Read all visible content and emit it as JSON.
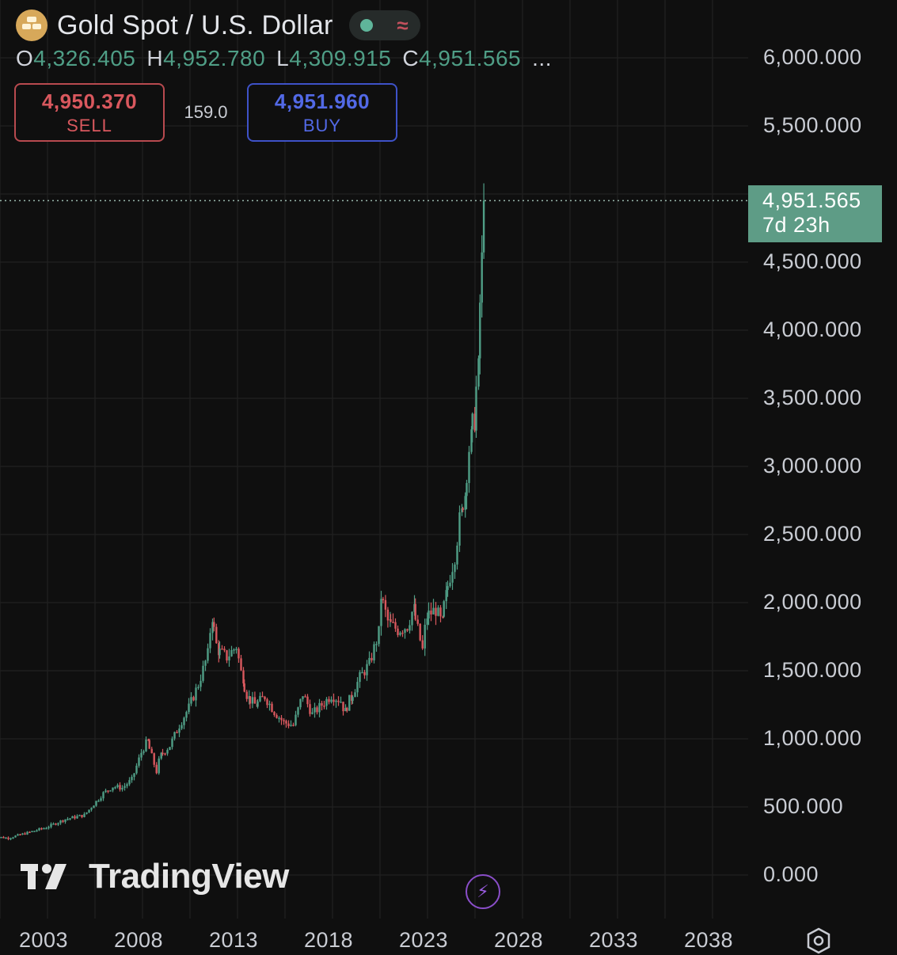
{
  "header": {
    "symbol_title": "Gold Spot / U.S. Dollar",
    "logo_icon": "gold-bars-icon",
    "status_icons": [
      "market-open-dot-icon",
      "data-delay-wave-icon"
    ],
    "status_wave_glyph": "≈",
    "ohlc": [
      {
        "key": "O",
        "value": "4,326.405"
      },
      {
        "key": "H",
        "value": "4,952.780"
      },
      {
        "key": "L",
        "value": "4,309.915"
      },
      {
        "key": "C",
        "value": "4,951.565"
      }
    ],
    "ohlc_more": "..."
  },
  "trade": {
    "sell_price": "4,950.370",
    "sell_label": "SELL",
    "spread": "159.0",
    "buy_price": "4,951.960",
    "buy_label": "BUY"
  },
  "price_tag": {
    "value": "4,951.565",
    "countdown": "7d 23h"
  },
  "watermark": {
    "text": "TradingView"
  },
  "colors": {
    "background": "#0f0f0f",
    "up": "#4f9e86",
    "down": "#d9585e",
    "grid": "#1f1f1f",
    "price_tag": "#5e9c86",
    "buy": "#5269e6"
  },
  "chart_data": {
    "type": "candlestick",
    "symbol": "Gold Spot / U.S. Dollar",
    "y_ticks": [
      "0.000",
      "500.000",
      "1,000.000",
      "1,500.000",
      "2,000.000",
      "2,500.000",
      "3,000.000",
      "3,500.000",
      "4,000.000",
      "4,500.000",
      "5,500.000",
      "6,000.000"
    ],
    "x_ticks": [
      "2003",
      "2008",
      "2013",
      "2018",
      "2023",
      "2028",
      "2033",
      "2038"
    ],
    "ylim": [
      0,
      6000
    ],
    "xlim": [
      2000.0,
      2041.0
    ],
    "last_price": 4951.565,
    "grid": true,
    "series": [
      {
        "name": "Gold Spot / U.S. Dollar",
        "points": [
          [
            2000.0,
            285
          ],
          [
            2001.0,
            272
          ],
          [
            2002.0,
            310
          ],
          [
            2003.0,
            350
          ],
          [
            2004.0,
            410
          ],
          [
            2005.0,
            440
          ],
          [
            2006.0,
            600
          ],
          [
            2006.5,
            650
          ],
          [
            2007.0,
            640
          ],
          [
            2007.5,
            700
          ],
          [
            2008.0,
            900
          ],
          [
            2008.3,
            980
          ],
          [
            2008.8,
            760
          ],
          [
            2009.0,
            880
          ],
          [
            2009.5,
            950
          ],
          [
            2010.0,
            1100
          ],
          [
            2010.5,
            1230
          ],
          [
            2011.0,
            1400
          ],
          [
            2011.5,
            1620
          ],
          [
            2011.7,
            1900
          ],
          [
            2012.0,
            1650
          ],
          [
            2012.5,
            1600
          ],
          [
            2013.0,
            1680
          ],
          [
            2013.3,
            1450
          ],
          [
            2013.6,
            1300
          ],
          [
            2014.0,
            1250
          ],
          [
            2014.5,
            1310
          ],
          [
            2015.0,
            1200
          ],
          [
            2015.5,
            1120
          ],
          [
            2016.0,
            1100
          ],
          [
            2016.5,
            1330
          ],
          [
            2017.0,
            1180
          ],
          [
            2017.5,
            1250
          ],
          [
            2018.0,
            1320
          ],
          [
            2018.5,
            1280
          ],
          [
            2018.7,
            1200
          ],
          [
            2019.0,
            1300
          ],
          [
            2019.5,
            1450
          ],
          [
            2020.0,
            1550
          ],
          [
            2020.5,
            1780
          ],
          [
            2020.6,
            2050
          ],
          [
            2021.0,
            1850
          ],
          [
            2021.5,
            1800
          ],
          [
            2022.0,
            1830
          ],
          [
            2022.3,
            1950
          ],
          [
            2022.8,
            1650
          ],
          [
            2023.0,
            1900
          ],
          [
            2023.5,
            1950
          ],
          [
            2023.8,
            1850
          ],
          [
            2024.0,
            2050
          ],
          [
            2024.5,
            2350
          ],
          [
            2024.8,
            2650
          ],
          [
            2025.0,
            2800
          ],
          [
            2025.3,
            3200
          ],
          [
            2025.5,
            3350
          ],
          [
            2025.7,
            3700
          ],
          [
            2025.8,
            4200
          ],
          [
            2025.9,
            4500
          ],
          [
            2026.0,
            4951.565
          ]
        ]
      }
    ]
  }
}
